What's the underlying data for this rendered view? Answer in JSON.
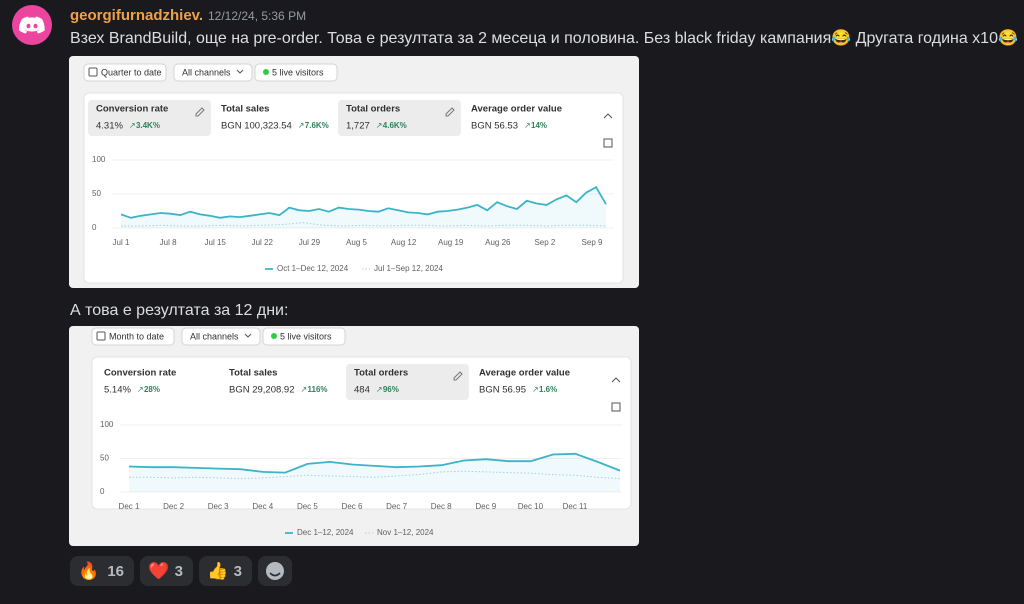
{
  "message": {
    "author": "georgifurnadzhiev.",
    "timestamp": "12/12/24, 5:36 PM",
    "text": "Взех BrandBuild, още на pre-order. Това е резултата за 2 месеца и половина. Без black friday кампания😂 Другата година x10😂",
    "caption": "А това е резултата за 12 дни:"
  },
  "screenshots": [
    {
      "toolbar": [
        "Quarter to date",
        "All channels",
        "5 live visitors"
      ],
      "metrics": [
        {
          "label": "Conversion rate",
          "value": "4.31%",
          "change": "3.4K%",
          "selected": true
        },
        {
          "label": "Total sales",
          "value": "BGN 100,323.54",
          "change": "7.6K%",
          "selected": false
        },
        {
          "label": "Total orders",
          "value": "1,727",
          "change": "4.6K%",
          "selected": true
        },
        {
          "label": "Average order value",
          "value": "BGN 56.53",
          "change": "14%",
          "selected": false
        }
      ],
      "chart": {
        "type": "line",
        "ylim": [
          0,
          100
        ],
        "yticks": [
          0,
          50,
          100
        ],
        "grid": true,
        "x_labels": [
          "Jul 1",
          "Jul 8",
          "Jul 15",
          "Jul 22",
          "Jul 29",
          "Aug 5",
          "Aug 12",
          "Aug 19",
          "Aug 26",
          "Sep 2",
          "Sep 9"
        ],
        "series": [
          {
            "name": "Oct 1–Dec 12, 2024",
            "color": "#3cb4c8",
            "dashed": false,
            "values": [
              20,
              15,
              18,
              20,
              22,
              21,
              19,
              24,
              20,
              18,
              15,
              17,
              16,
              18,
              20,
              22,
              19,
              30,
              26,
              25,
              28,
              24,
              30,
              28,
              27,
              25,
              24,
              29,
              26,
              23,
              22,
              20,
              24,
              25,
              27,
              30,
              34,
              26,
              38,
              32,
              28,
              40,
              36,
              34,
              42,
              48,
              38,
              52,
              60,
              35
            ]
          },
          {
            "name": "Jul 1–Sep 12, 2024",
            "color": "#9fd3dc",
            "dashed": true,
            "values": [
              3,
              3,
              4,
              3,
              3,
              4,
              3,
              4,
              5,
              8,
              4,
              3,
              4,
              3,
              4,
              4,
              3,
              4,
              3,
              4,
              4,
              3,
              4,
              4,
              3
            ]
          }
        ]
      }
    },
    {
      "toolbar": [
        "Month to date",
        "All channels",
        "5 live visitors"
      ],
      "metrics": [
        {
          "label": "Conversion rate",
          "value": "5.14%",
          "change": "28%",
          "selected": false
        },
        {
          "label": "Total sales",
          "value": "BGN 29,208.92",
          "change": "116%",
          "selected": false
        },
        {
          "label": "Total orders",
          "value": "484",
          "change": "96%",
          "selected": true
        },
        {
          "label": "Average order value",
          "value": "BGN 56.95",
          "change": "1.6%",
          "selected": false
        }
      ],
      "chart": {
        "type": "line",
        "ylim": [
          0,
          100
        ],
        "yticks": [
          0,
          50,
          100
        ],
        "grid": true,
        "x_labels": [
          "Dec 1",
          "Dec 2",
          "Dec 3",
          "Dec 4",
          "Dec 5",
          "Dec 6",
          "Dec 7",
          "Dec 8",
          "Dec 9",
          "Dec 10",
          "Dec 11"
        ],
        "series": [
          {
            "name": "Dec 1–12, 2024",
            "color": "#3cb4c8",
            "dashed": false,
            "values": [
              38,
              37,
              37,
              36,
              35,
              34,
              30,
              29,
              42,
              45,
              41,
              39,
              37,
              38,
              40,
              47,
              49,
              46,
              46,
              56,
              57,
              45,
              32
            ]
          },
          {
            "name": "Nov 1–12, 2024",
            "color": "#9fd3dc",
            "dashed": true,
            "values": [
              22,
              22,
              21,
              22,
              21,
              20,
              21,
              23,
              25,
              24,
              23,
              22,
              24,
              26,
              30,
              31,
              30,
              29,
              28,
              26,
              25,
              22,
              20
            ]
          }
        ]
      }
    }
  ],
  "reactions": [
    {
      "emoji": "🔥",
      "count": 16
    },
    {
      "emoji": "❤️",
      "count": 3
    },
    {
      "emoji": "👍",
      "count": 3
    }
  ]
}
